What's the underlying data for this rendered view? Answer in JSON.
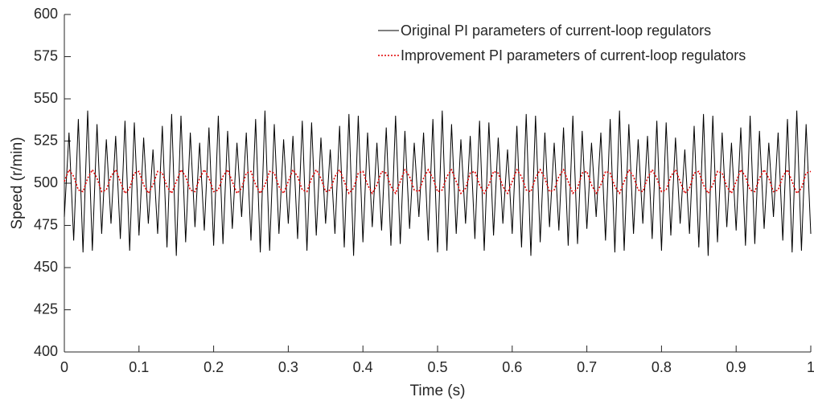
{
  "chart_data": {
    "type": "line",
    "xlabel": "Time (s)",
    "ylabel": "Speed (r/min)",
    "xlim": [
      0,
      1
    ],
    "ylim": [
      400,
      600
    ],
    "xticks": [
      0,
      0.1,
      0.2,
      0.3,
      0.4,
      0.5,
      0.6,
      0.7,
      0.8,
      0.9,
      1
    ],
    "yticks": [
      400,
      425,
      450,
      475,
      500,
      525,
      550,
      575,
      600
    ],
    "grid": false,
    "legend": "top-right",
    "x": [
      0,
      0.00625,
      0.0125,
      0.01875,
      0.025,
      0.03125,
      0.0375,
      0.04375,
      0.05,
      0.05625,
      0.0625,
      0.06875,
      0.075,
      0.08125,
      0.0875,
      0.09375,
      0.1,
      0.10625,
      0.1125,
      0.11875,
      0.125,
      0.13125,
      0.1375,
      0.14375,
      0.15,
      0.15625,
      0.1625,
      0.16875,
      0.175,
      0.18125,
      0.1875,
      0.19375,
      0.2,
      0.20625,
      0.2125,
      0.21875,
      0.225,
      0.23125,
      0.2375,
      0.24375,
      0.25,
      0.25625,
      0.2625,
      0.26875,
      0.275,
      0.28125,
      0.2875,
      0.29375,
      0.3,
      0.30625,
      0.3125,
      0.31875,
      0.325,
      0.33125,
      0.3375,
      0.34375,
      0.35,
      0.35625,
      0.3625,
      0.36875,
      0.375,
      0.38125,
      0.3875,
      0.39375,
      0.4,
      0.40625,
      0.4125,
      0.41875,
      0.425,
      0.43125,
      0.4375,
      0.44375,
      0.45,
      0.45625,
      0.4625,
      0.46875,
      0.475,
      0.48125,
      0.4875,
      0.49375,
      0.5,
      0.50625,
      0.5125,
      0.51875,
      0.525,
      0.53125,
      0.5375,
      0.54375,
      0.55,
      0.55625,
      0.5625,
      0.56875,
      0.575,
      0.58125,
      0.5875,
      0.59375,
      0.6,
      0.60625,
      0.6125,
      0.61875,
      0.625,
      0.63125,
      0.6375,
      0.64375,
      0.65,
      0.65625,
      0.6625,
      0.66875,
      0.675,
      0.68125,
      0.6875,
      0.69375,
      0.7,
      0.70625,
      0.7125,
      0.71875,
      0.725,
      0.73125,
      0.7375,
      0.74375,
      0.75,
      0.75625,
      0.7625,
      0.76875,
      0.775,
      0.78125,
      0.7875,
      0.79375,
      0.8,
      0.80625,
      0.8125,
      0.81875,
      0.825,
      0.83125,
      0.8375,
      0.84375,
      0.85,
      0.85625,
      0.8625,
      0.86875,
      0.875,
      0.88125,
      0.8875,
      0.89375,
      0.9,
      0.90625,
      0.9125,
      0.91875,
      0.925,
      0.93125,
      0.9375,
      0.94375,
      0.95,
      0.95625,
      0.9625,
      0.96875,
      0.975,
      0.98125,
      0.9875,
      0.99375,
      1
    ],
    "series": [
      {
        "name": "Original PI parameters of current-loop regulators",
        "color": "#000000",
        "dash": "solid",
        "values": [
          480,
          530,
          466,
          538,
          459,
          543,
          460,
          535,
          470,
          526,
          476,
          528,
          467,
          537,
          460,
          536,
          469,
          527,
          476,
          520,
          470,
          534,
          462,
          541,
          457,
          540,
          465,
          530,
          474,
          524,
          472,
          533,
          463,
          540,
          464,
          531,
          473,
          524,
          480,
          530,
          466,
          538,
          459,
          543,
          460,
          535,
          470,
          526,
          476,
          528,
          467,
          537,
          460,
          536,
          469,
          527,
          476,
          520,
          470,
          534,
          462,
          541,
          457,
          540,
          465,
          530,
          474,
          524,
          472,
          533,
          463,
          540,
          464,
          531,
          473,
          524,
          480,
          530,
          466,
          538,
          459,
          543,
          460,
          535,
          470,
          526,
          476,
          528,
          467,
          537,
          460,
          536,
          469,
          527,
          476,
          520,
          470,
          534,
          462,
          541,
          457,
          540,
          465,
          530,
          474,
          524,
          472,
          533,
          463,
          540,
          464,
          531,
          473,
          524,
          480,
          530,
          466,
          538,
          459,
          543,
          460,
          535,
          470,
          526,
          476,
          528,
          467,
          537,
          460,
          536,
          469,
          527,
          476,
          520,
          470,
          534,
          462,
          541,
          457,
          540,
          465,
          530,
          474,
          524,
          472,
          533,
          463,
          540,
          464,
          531,
          473,
          524,
          480,
          530,
          466,
          538,
          459,
          543,
          460,
          535,
          470
        ]
      },
      {
        "name": "Improvement PI parameters of current-loop regulators",
        "color": "#e00000",
        "dash": "dotted",
        "values": [
          501,
          508,
          504,
          496,
          495,
          503,
          508,
          503,
          495,
          496,
          504,
          508,
          501,
          494,
          497,
          506,
          507,
          499,
          494,
          499,
          507,
          506,
          498,
          494,
          501,
          508,
          504,
          496,
          495,
          503,
          508,
          503,
          495,
          496,
          504,
          508,
          501,
          494,
          497,
          506,
          507,
          499,
          494,
          499,
          507,
          506,
          498,
          494,
          501,
          508,
          504,
          496,
          495,
          503,
          508,
          503,
          495,
          496,
          504,
          508,
          501,
          494,
          497,
          506,
          507,
          499,
          494,
          499,
          507,
          506,
          498,
          494,
          501,
          508,
          504,
          496,
          495,
          503,
          508,
          503,
          495,
          496,
          504,
          508,
          501,
          494,
          497,
          506,
          507,
          499,
          494,
          499,
          507,
          506,
          498,
          494,
          501,
          508,
          504,
          496,
          495,
          503,
          508,
          503,
          495,
          496,
          504,
          508,
          501,
          494,
          497,
          506,
          507,
          499,
          494,
          499,
          507,
          506,
          498,
          494,
          501,
          508,
          504,
          496,
          495,
          503,
          508,
          503,
          495,
          496,
          504,
          508,
          501,
          494,
          497,
          506,
          507,
          499,
          494,
          499,
          507,
          506,
          498,
          494,
          501,
          508,
          504,
          496,
          495,
          503,
          508,
          503,
          495,
          496,
          504,
          508,
          501,
          494,
          497,
          506,
          507
        ]
      }
    ]
  }
}
